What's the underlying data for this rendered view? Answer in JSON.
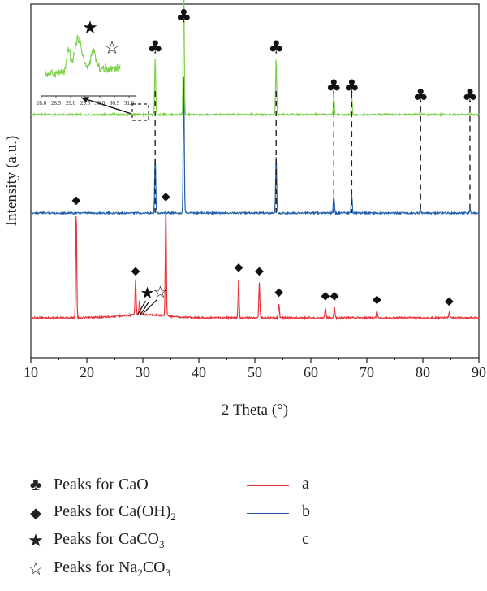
{
  "chart_data": {
    "type": "line",
    "xlabel": "2 Theta (°)",
    "ylabel": "Intensity (a.u.)",
    "xlim": [
      10,
      90
    ],
    "xticks": [
      10,
      20,
      30,
      40,
      50,
      60,
      70,
      80,
      90
    ],
    "series": [
      {
        "name": "a",
        "color": "#e8333a",
        "peaks": [
          {
            "x": 18.1,
            "h": 0.3
          },
          {
            "x": 28.7,
            "h": 0.1
          },
          {
            "x": 29.4,
            "h": 0.04
          },
          {
            "x": 34.1,
            "h": 0.31
          },
          {
            "x": 47.1,
            "h": 0.11
          },
          {
            "x": 50.8,
            "h": 0.1
          },
          {
            "x": 54.3,
            "h": 0.04
          },
          {
            "x": 62.6,
            "h": 0.03
          },
          {
            "x": 64.2,
            "h": 0.03
          },
          {
            "x": 71.8,
            "h": 0.02
          },
          {
            "x": 84.7,
            "h": 0.015
          }
        ]
      },
      {
        "name": "b",
        "color": "#1f5fa8",
        "peaks": [
          {
            "x": 32.2,
            "h": 0.16
          },
          {
            "x": 37.3,
            "h": 0.4
          },
          {
            "x": 53.8,
            "h": 0.16
          },
          {
            "x": 64.1,
            "h": 0.05
          },
          {
            "x": 67.3,
            "h": 0.05
          },
          {
            "x": 79.6,
            "h": 0.01
          },
          {
            "x": 88.4,
            "h": 0.01
          }
        ]
      },
      {
        "name": "c",
        "color": "#7ed14b",
        "peaks": [
          {
            "x": 32.2,
            "h": 0.16
          },
          {
            "x": 37.3,
            "h": 0.4
          },
          {
            "x": 53.8,
            "h": 0.16
          },
          {
            "x": 64.1,
            "h": 0.05
          },
          {
            "x": 67.3,
            "h": 0.05
          },
          {
            "x": 79.6,
            "h": 0.01
          },
          {
            "x": 88.4,
            "h": 0.01
          }
        ]
      }
    ],
    "markers": {
      "cao": [
        32.2,
        37.3,
        53.8,
        64.1,
        67.3,
        79.6,
        88.4
      ],
      "caoh2": [
        18.1,
        28.7,
        34.1,
        47.1,
        50.8,
        54.3,
        62.6,
        64.2,
        71.8,
        84.7
      ],
      "caco3": [
        30.8
      ],
      "na2co3": [
        33.1
      ]
    },
    "inset": {
      "xticks": [
        "28.0",
        "28.5",
        "29.0",
        "29.5",
        "30.0",
        "30.5",
        "31.0"
      ]
    }
  },
  "legend": {
    "symbols": [
      {
        "icon": "club-icon",
        "glyph": "♣",
        "label": "Peaks for CaO"
      },
      {
        "icon": "diamond-icon",
        "glyph": "◆",
        "label_main": "Peaks for Ca(OH)",
        "label_sub": "2"
      },
      {
        "icon": "filled-star-icon",
        "glyph": "★",
        "label_main": "Peaks for CaCO",
        "label_sub": "3"
      },
      {
        "icon": "open-star-icon",
        "glyph": "☆",
        "label_main": "Peaks for Na",
        "label_sub": "2",
        "label_tail": "CO",
        "label_sub2": "3"
      }
    ],
    "series": [
      {
        "label": "a",
        "color": "#e8333a"
      },
      {
        "label": "b",
        "color": "#1f5fa8"
      },
      {
        "label": "c",
        "color": "#7ed14b"
      }
    ]
  }
}
